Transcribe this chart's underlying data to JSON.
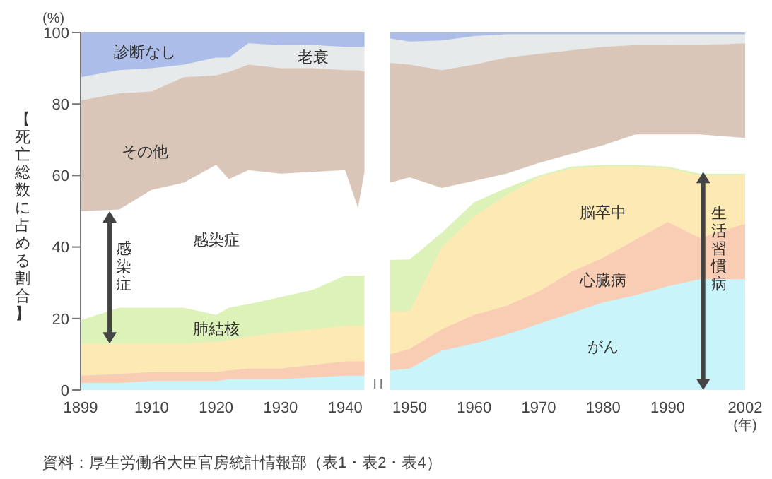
{
  "chart_data": {
    "type": "area",
    "stacked": true,
    "ylabel": "【死亡総数に占める割合】",
    "xlabel": "(年)",
    "annotations": [
      "(%)",
      "感染症",
      "生活習慣病",
      "資料：厚生労働省大臣官房統計情報部（表1・表2・表4）"
    ],
    "x": [
      1899,
      1905,
      1910,
      1915,
      1920,
      1922,
      1925,
      1930,
      1935,
      1940,
      1942,
      1943,
      1944,
      1945,
      1946,
      1947,
      1950,
      1955,
      1960,
      1965,
      1970,
      1975,
      1980,
      1985,
      1990,
      1995,
      2002
    ],
    "series": [
      {
        "name": "がん",
        "color": "#c8f4fa",
        "values": [
          2,
          2,
          2.5,
          2.5,
          2.5,
          3,
          3,
          3,
          3.5,
          4,
          4,
          4,
          null,
          null,
          null,
          5.5,
          6,
          11,
          13,
          15.5,
          18.5,
          21.5,
          24.5,
          26.5,
          29,
          31,
          31
        ]
      },
      {
        "name": "心臓病",
        "color": "#f8cdb4",
        "values": [
          2,
          2.5,
          2.5,
          2.5,
          2.5,
          2.5,
          3,
          3,
          3.5,
          4,
          4,
          4,
          null,
          null,
          null,
          4.5,
          5.5,
          6,
          8,
          8,
          9,
          11.5,
          12.5,
          15.5,
          18,
          11.5,
          15.5
        ]
      },
      {
        "name": "脳卒中",
        "color": "#fde9b4",
        "values": [
          9,
          8.5,
          8,
          8,
          8.5,
          8.5,
          9,
          10,
          10,
          10,
          10,
          10,
          null,
          null,
          null,
          12,
          10.5,
          23,
          27.5,
          31,
          32,
          29,
          25.5,
          20.5,
          15,
          17.5,
          13.5
        ]
      },
      {
        "name": "肺結核",
        "color": "#dcf2b8",
        "values": [
          6.5,
          10,
          10,
          10,
          7.5,
          9,
          9,
          10,
          11,
          14,
          14,
          14,
          null,
          null,
          null,
          14.4,
          14.5,
          4,
          4,
          2,
          0.5,
          0.5,
          0.5,
          0.5,
          0.5,
          0.5,
          0.5
        ]
      },
      {
        "name": "感染症",
        "color": "#ffffff",
        "values": [
          30.5,
          27.5,
          33,
          35,
          42,
          36,
          37.5,
          34.5,
          33,
          29.5,
          19,
          29,
          null,
          null,
          null,
          21.6,
          23,
          12.5,
          6,
          4,
          3.5,
          3.5,
          5.5,
          8.5,
          9,
          11,
          10
        ]
      },
      {
        "name": "その他",
        "color": "#d9c6b8",
        "values": [
          31,
          32.5,
          27.5,
          29.5,
          25,
          30,
          29.5,
          29.5,
          29,
          28,
          38.5,
          28,
          null,
          null,
          null,
          33.5,
          31.5,
          33,
          32.5,
          32.5,
          30.5,
          29,
          27.5,
          25,
          25,
          25,
          26.5
        ]
      },
      {
        "name": "老衰",
        "color": "#e6eaea",
        "values": [
          6.5,
          6.5,
          6.5,
          3.5,
          5,
          4,
          6,
          6.5,
          6.5,
          6.5,
          6.5,
          7,
          null,
          null,
          null,
          6.8,
          6.5,
          8.3,
          8,
          6.5,
          5.5,
          4.5,
          3.5,
          3,
          3,
          3,
          2.5
        ]
      },
      {
        "name": "診断なし",
        "color": "#adbde9",
        "values": [
          12.5,
          10.5,
          10,
          9,
          7,
          7,
          3,
          3.5,
          3.5,
          4,
          4,
          4,
          null,
          null,
          null,
          1.7,
          2.5,
          2.2,
          1,
          0.5,
          0.5,
          0.5,
          0.5,
          0.5,
          0.5,
          0.5,
          0.5
        ]
      }
    ],
    "xlim": [
      1899,
      2002
    ],
    "ylim": [
      0,
      100
    ],
    "xticks": [
      1899,
      1910,
      1920,
      1930,
      1940,
      1950,
      1960,
      1970,
      1980,
      1990,
      2002
    ],
    "yticks": [
      0,
      20,
      40,
      60,
      80,
      100
    ]
  }
}
